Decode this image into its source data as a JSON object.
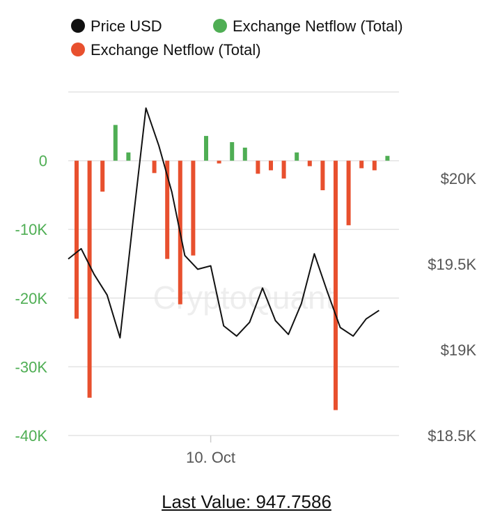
{
  "chart_data": {
    "type": "bar",
    "legend": [
      {
        "label": "Price USD",
        "color": "#111111"
      },
      {
        "label": "Exchange Netflow (Total)",
        "color": "#4fae54"
      },
      {
        "label": "Exchange Netflow (Total)",
        "color": "#e8502e"
      }
    ],
    "watermark": "CryptoQuant",
    "x_ticks": [
      {
        "label": "10. Oct",
        "index": 11
      }
    ],
    "left_axis": {
      "ticks": [
        "0",
        "-10K",
        "-20K",
        "-30K",
        "-40K"
      ],
      "tick_values": [
        0,
        -10000,
        -20000,
        -30000,
        -40000
      ],
      "ylim": [
        -40000,
        10000
      ]
    },
    "right_axis": {
      "ticks": [
        "$20K",
        "$19.5K",
        "$19K",
        "$18.5K"
      ],
      "tick_values": [
        20000,
        19500,
        19000,
        18500
      ],
      "ylim": [
        18500,
        20500
      ]
    },
    "series": [
      {
        "name": "Exchange Netflow (Total)",
        "kind": "bar",
        "positive_color": "#4fae54",
        "negative_color": "#e8502e",
        "values": [
          -23000,
          -34500,
          -4500,
          5200,
          1200,
          0,
          -1800,
          -14300,
          -20900,
          -13800,
          3600,
          -400,
          2700,
          1900,
          -1900,
          -1400,
          -2600,
          1200,
          -800,
          -4300,
          -36300,
          -9400,
          -1100,
          -1400,
          700
        ]
      },
      {
        "name": "Price USD",
        "kind": "line",
        "color": "#111111",
        "values": [
          19530,
          19590,
          19440,
          19320,
          19070,
          19750,
          20410,
          20190,
          19920,
          19550,
          19470,
          19490,
          19140,
          19080,
          19160,
          19360,
          19170,
          19090,
          19270,
          19560,
          19340,
          19130,
          19080,
          19180,
          19230
        ]
      }
    ]
  },
  "footer": {
    "last_value": "Last Value: 947.7586"
  }
}
